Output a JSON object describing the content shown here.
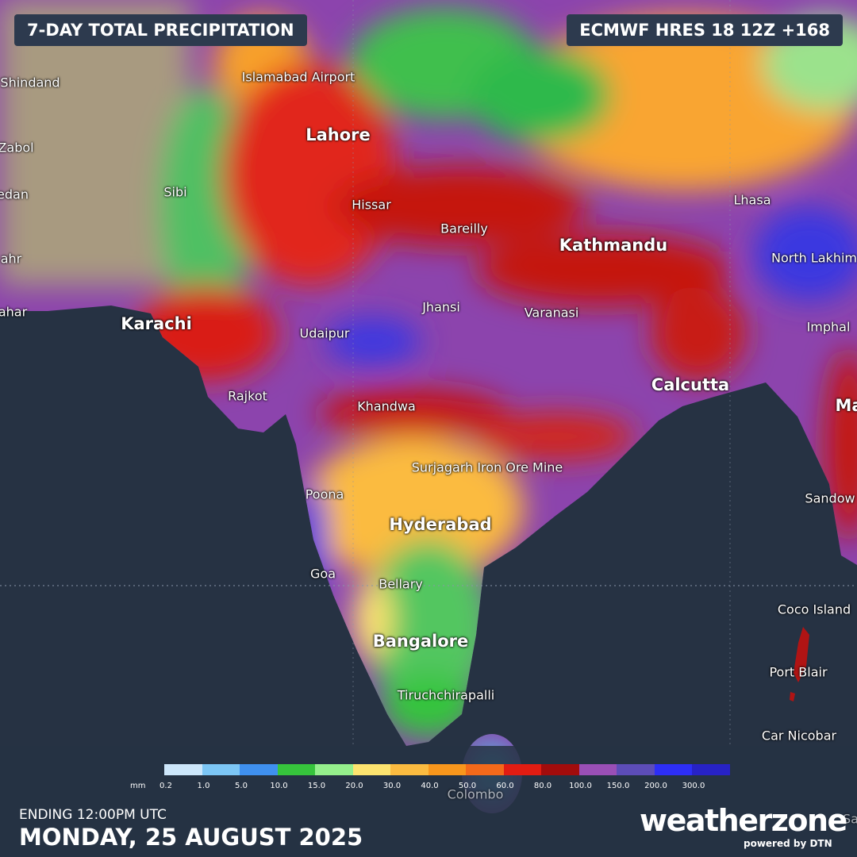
{
  "header": {
    "title": "7-DAY TOTAL PRECIPITATION",
    "model": "ECMWF HRES 18 12Z +168"
  },
  "places": [
    "Shindand",
    "Zabol",
    "edan",
    "ahr",
    "ahar",
    "Islamabad Airport",
    "Lahore",
    "Sibi",
    "Hissar",
    "Bareilly",
    "Lhasa",
    "Kathmandu",
    "North Lakhim",
    "Karachi",
    "Udaipur",
    "Jhansi",
    "Varanasi",
    "Imphal",
    "Calcutta",
    "Rajkot",
    "Khandwa",
    "Ma",
    "Surjagarh Iron Ore Mine",
    "Poona",
    "Sandow",
    "Hyderabad",
    "Goa",
    "Bellary",
    "Coco Island",
    "Bangalore",
    "Port Blair",
    "Tiruchchirapalli",
    "Car Nicobar",
    "Colombo",
    "Sa"
  ],
  "legend": {
    "unit": "mm",
    "bins": [
      {
        "label": "0.2",
        "color": "#cde7fb"
      },
      {
        "label": "1.0",
        "color": "#7cc6f5"
      },
      {
        "label": "5.0",
        "color": "#3f90ef"
      },
      {
        "label": "10.0",
        "color": "#36c43c"
      },
      {
        "label": "15.0",
        "color": "#95ef8c"
      },
      {
        "label": "20.0",
        "color": "#fde46f"
      },
      {
        "label": "30.0",
        "color": "#fbbb40"
      },
      {
        "label": "40.0",
        "color": "#f8961c"
      },
      {
        "label": "50.0",
        "color": "#f3691a"
      },
      {
        "label": "60.0",
        "color": "#e11c12"
      },
      {
        "label": "80.0",
        "color": "#a20c0c"
      },
      {
        "label": "100.0",
        "color": "#9a4fb6"
      },
      {
        "label": "150.0",
        "color": "#5d4db8"
      },
      {
        "label": "200.0",
        "color": "#2d2ef6"
      },
      {
        "label": "300.0",
        "color": "#2722c6"
      }
    ]
  },
  "footer": {
    "ending": "ENDING 12:00PM UTC",
    "date": "MONDAY, 25 AUGUST 2025"
  },
  "logo": {
    "brand": "weatherzone",
    "tagline": "powered by DTN"
  }
}
